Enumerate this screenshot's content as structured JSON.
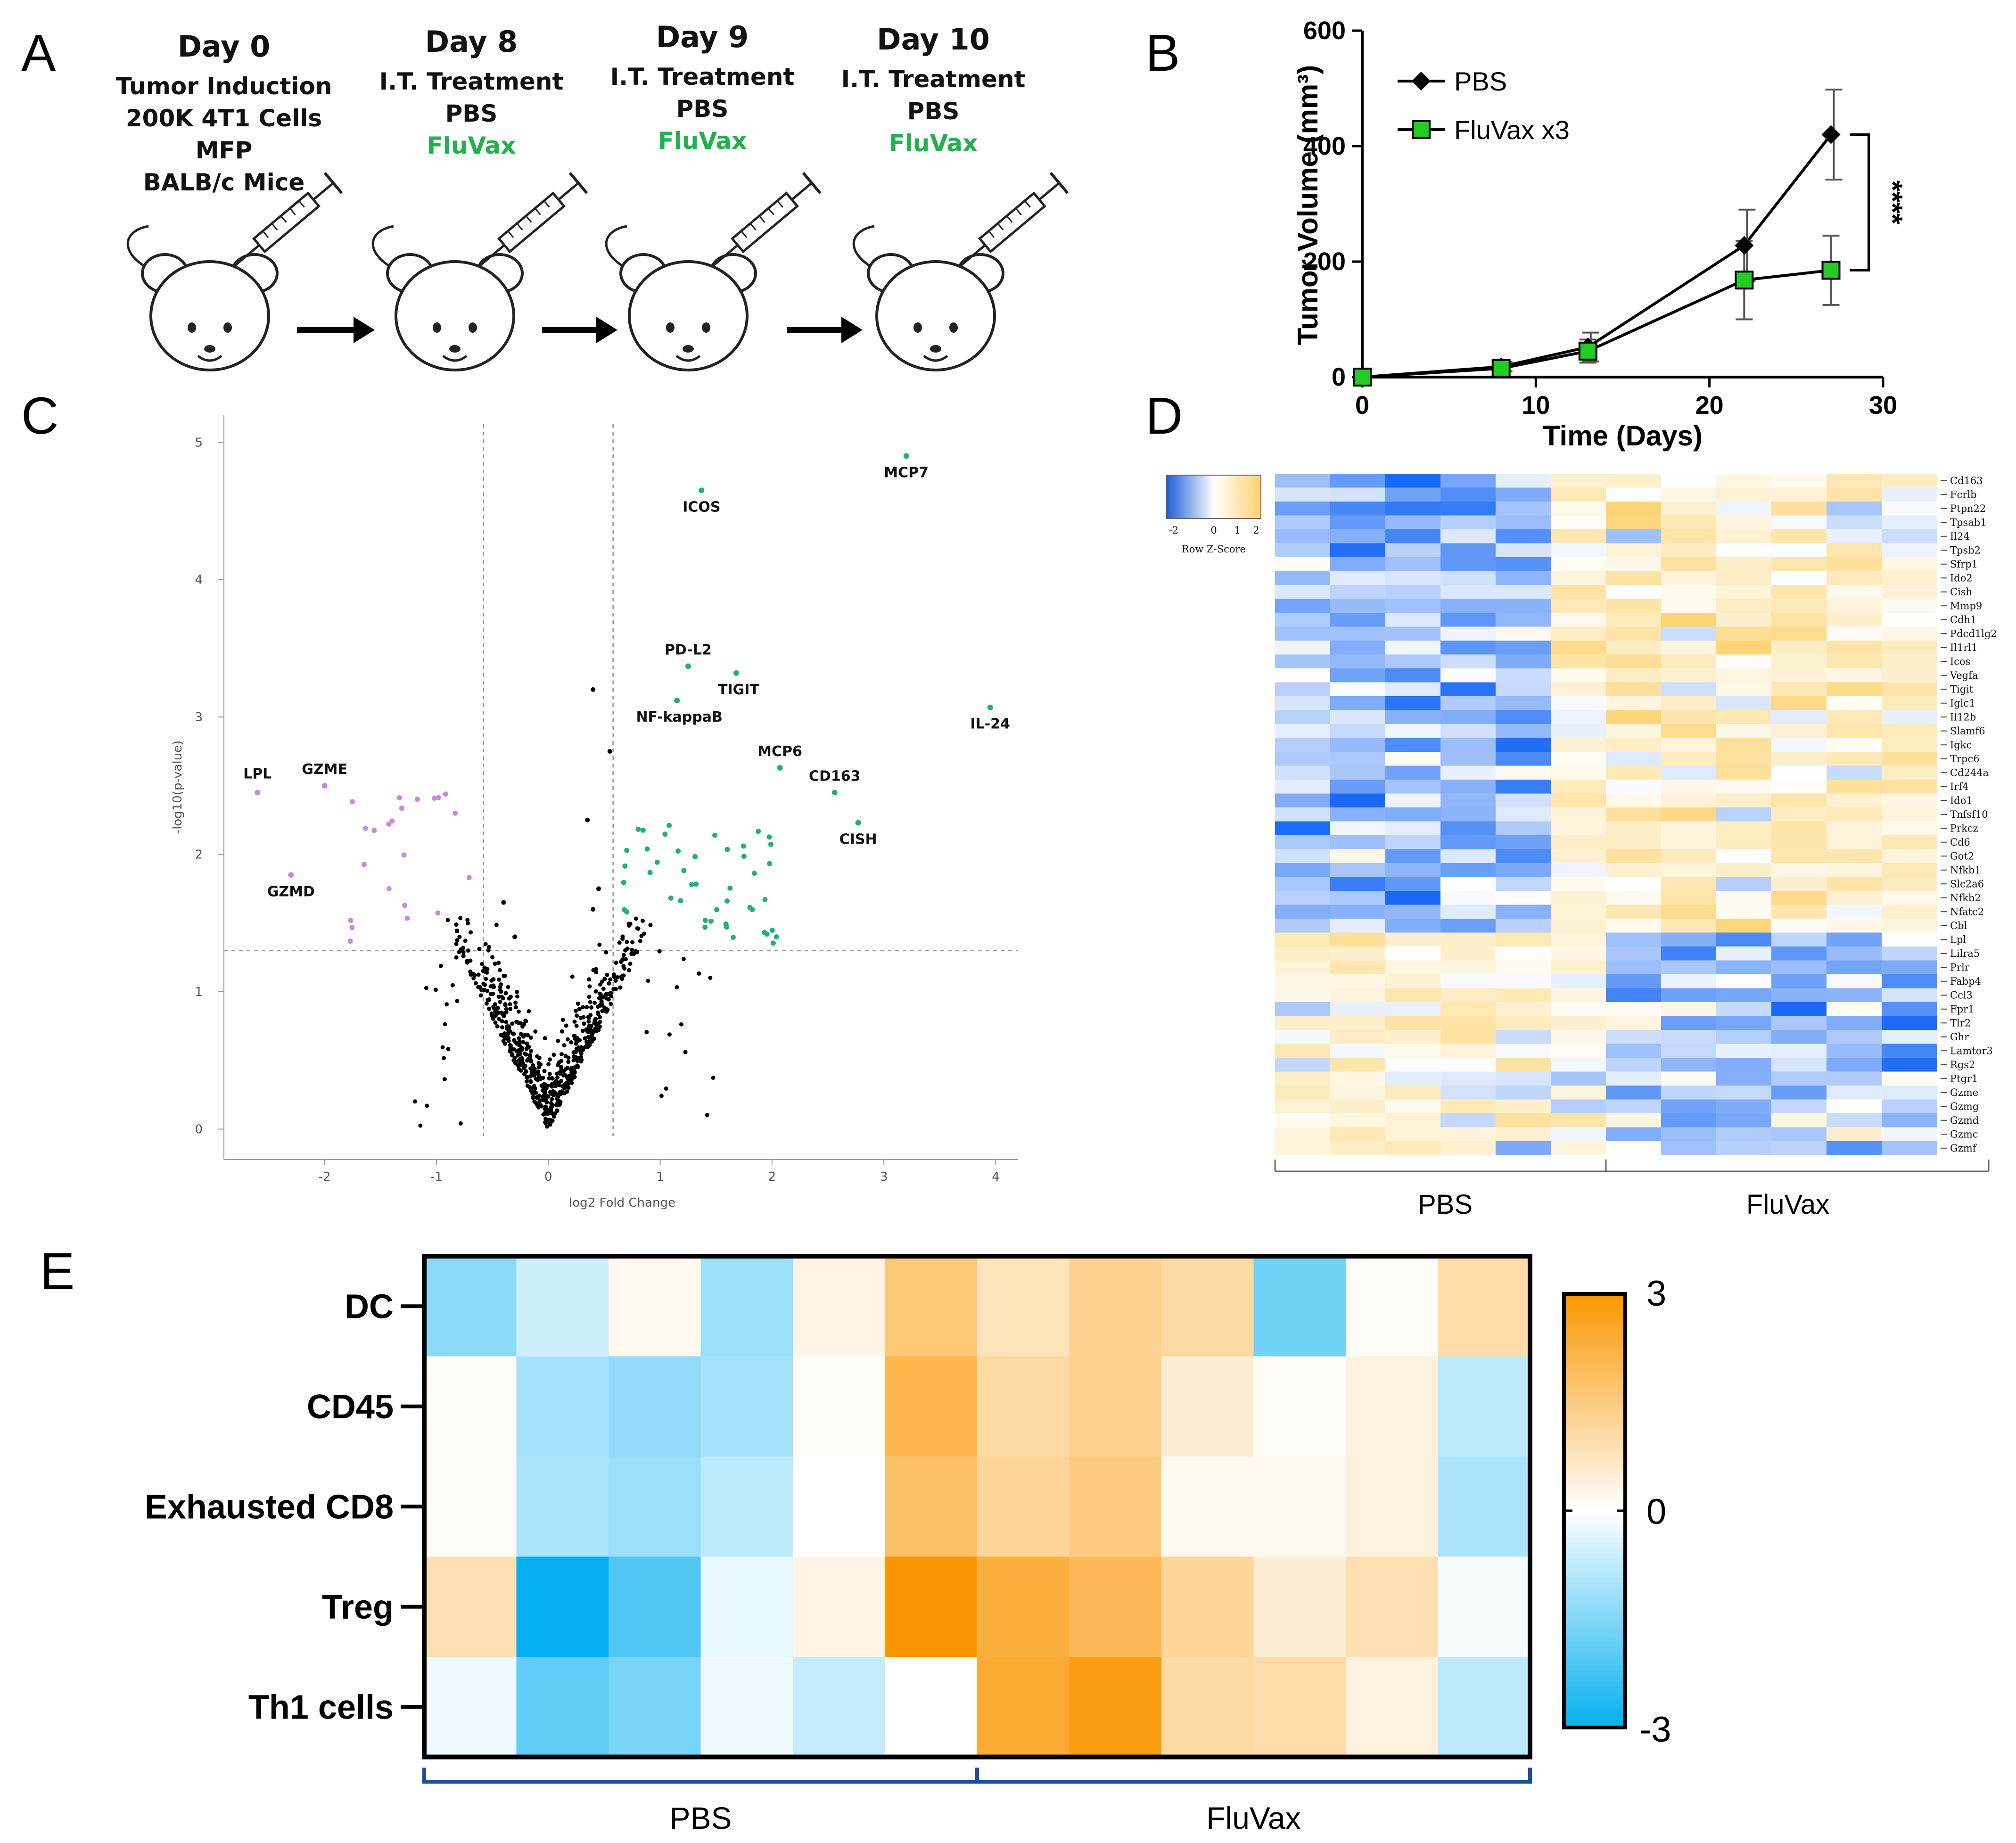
{
  "panels": {
    "a": "A",
    "b": "B",
    "c": "C",
    "d": "D",
    "e": "E"
  },
  "timeline": [
    {
      "day": "Day 0",
      "lines": [
        "Tumor Induction",
        "200K 4T1 Cells",
        "MFP",
        "BALB/c Mice"
      ],
      "green": ""
    },
    {
      "day": "Day 8",
      "lines": [
        "I.T. Treatment",
        "PBS"
      ],
      "green": "FluVax"
    },
    {
      "day": "Day 9",
      "lines": [
        "I.T. Treatment",
        "PBS"
      ],
      "green": "FluVax"
    },
    {
      "day": "Day 10",
      "lines": [
        "I.T. Treatment",
        "PBS"
      ],
      "green": "FluVax"
    }
  ],
  "chart_data": [
    {
      "id": "tumor_growth",
      "type": "line",
      "xlabel": "Time (Days)",
      "ylabel": "Tumor Volume (mm³)",
      "xlim": [
        0,
        30
      ],
      "ylim": [
        0,
        600
      ],
      "xticks": [
        0,
        10,
        20,
        30
      ],
      "yticks": [
        0,
        200,
        400,
        600
      ],
      "x": [
        0,
        8,
        13,
        22,
        27
      ],
      "series": [
        {
          "name": "PBS",
          "values": [
            0,
            18,
            52,
            228,
            420
          ],
          "err": [
            0,
            8,
            25,
            62,
            78
          ],
          "marker": "diamond",
          "color": "#000000"
        },
        {
          "name": "FluVax x3",
          "values": [
            0,
            15,
            45,
            168,
            185
          ],
          "err": [
            0,
            6,
            20,
            68,
            60
          ],
          "marker": "square",
          "color": "#22cc22"
        }
      ],
      "annotation": "****"
    },
    {
      "id": "volcano",
      "type": "scatter",
      "xlabel": "log2 Fold Change",
      "ylabel": "-log10(p-value)",
      "xlim": [
        -2.9,
        4.2
      ],
      "ylim": [
        -0.05,
        5.2
      ],
      "xticks": [
        -2,
        -1,
        0,
        1,
        2,
        3,
        4
      ],
      "yticks": [
        0,
        1,
        2,
        3,
        4,
        5
      ],
      "fc_threshold": 0.58,
      "p_threshold": 1.3,
      "labeled_points": [
        {
          "label": "MCP7",
          "x": 3.2,
          "y": 4.9
        },
        {
          "label": "ICOS",
          "x": 1.37,
          "y": 4.65
        },
        {
          "label": "PD-L2",
          "x": 1.25,
          "y": 3.37
        },
        {
          "label": "TIGIT",
          "x": 1.68,
          "y": 3.32
        },
        {
          "label": "NF-kappaB",
          "x": 1.15,
          "y": 3.12
        },
        {
          "label": "IL-24",
          "x": 3.95,
          "y": 3.07
        },
        {
          "label": "MCP6",
          "x": 2.07,
          "y": 2.63
        },
        {
          "label": "CD163",
          "x": 2.56,
          "y": 2.45
        },
        {
          "label": "CISH",
          "x": 2.77,
          "y": 2.23
        },
        {
          "label": "LPL",
          "x": -2.6,
          "y": 2.45
        },
        {
          "label": "GZME",
          "x": -2.0,
          "y": 2.5
        },
        {
          "label": "GZMD",
          "x": -2.3,
          "y": 1.85
        }
      ]
    },
    {
      "id": "gene_heatmap",
      "type": "heatmap",
      "scale_label": "Row Z-Score",
      "scale_ticks": [
        "-2",
        "0",
        "1",
        "2"
      ],
      "groups": [
        "PBS",
        "FluVax"
      ],
      "genes": [
        "Cd163",
        "Fcrlb",
        "Ptpn22",
        "Tpsab1",
        "Il24",
        "Tpsb2",
        "Sfrp1",
        "Ido2",
        "Cish",
        "Mmp9",
        "Cdh1",
        "Pdcd1lg2",
        "Il1rl1",
        "Icos",
        "Vegfa",
        "Tigit",
        "Iglc1",
        "Il12b",
        "Slamf6",
        "Igkc",
        "Trpc6",
        "Cd244a",
        "Irf4",
        "Ido1",
        "Tnfsf10",
        "Prkcz",
        "Cd6",
        "Got2",
        "Nfkb1",
        "Slc2a6",
        "Nfkb2",
        "Nfatc2",
        "Cbl",
        "Lpl",
        "Lilra5",
        "Prlr",
        "Fabp4",
        "Ccl3",
        "Fpr1",
        "Tlr2",
        "Ghr",
        "Lamtor3",
        "Rgs2",
        "Ptgr1",
        "Gzme",
        "Gzmg",
        "Gzmd",
        "Gzmc",
        "Gzmf"
      ]
    },
    {
      "id": "cell_heatmap",
      "type": "heatmap",
      "rows": [
        "DC",
        "CD45",
        "Exhausted CD8",
        "Treg",
        "Th1 cells"
      ],
      "groups": [
        "PBS",
        "FluVax"
      ],
      "colorbar": {
        "max": "3",
        "mid": "0",
        "min": "-3"
      },
      "values": [
        [
          -1.4,
          -0.6,
          0.2,
          -1.2,
          0.3,
          1.6,
          0.8,
          1.3,
          1.1,
          -1.7,
          0.1,
          1.0
        ],
        [
          0.1,
          -1.1,
          -1.3,
          -1.1,
          0.1,
          2.1,
          1.1,
          1.3,
          0.5,
          0.1,
          0.4,
          -0.8
        ],
        [
          0.1,
          -1.0,
          -1.2,
          -0.8,
          0.0,
          1.8,
          1.2,
          1.5,
          0.2,
          0.2,
          0.4,
          -1.0
        ],
        [
          0.9,
          -3.0,
          -2.1,
          -0.3,
          0.3,
          3.0,
          2.3,
          2.0,
          1.2,
          0.5,
          0.9,
          -0.1
        ],
        [
          -0.2,
          -1.9,
          -1.6,
          -0.2,
          -0.7,
          0.0,
          2.4,
          2.8,
          1.1,
          1.0,
          0.4,
          -0.8
        ]
      ]
    }
  ]
}
